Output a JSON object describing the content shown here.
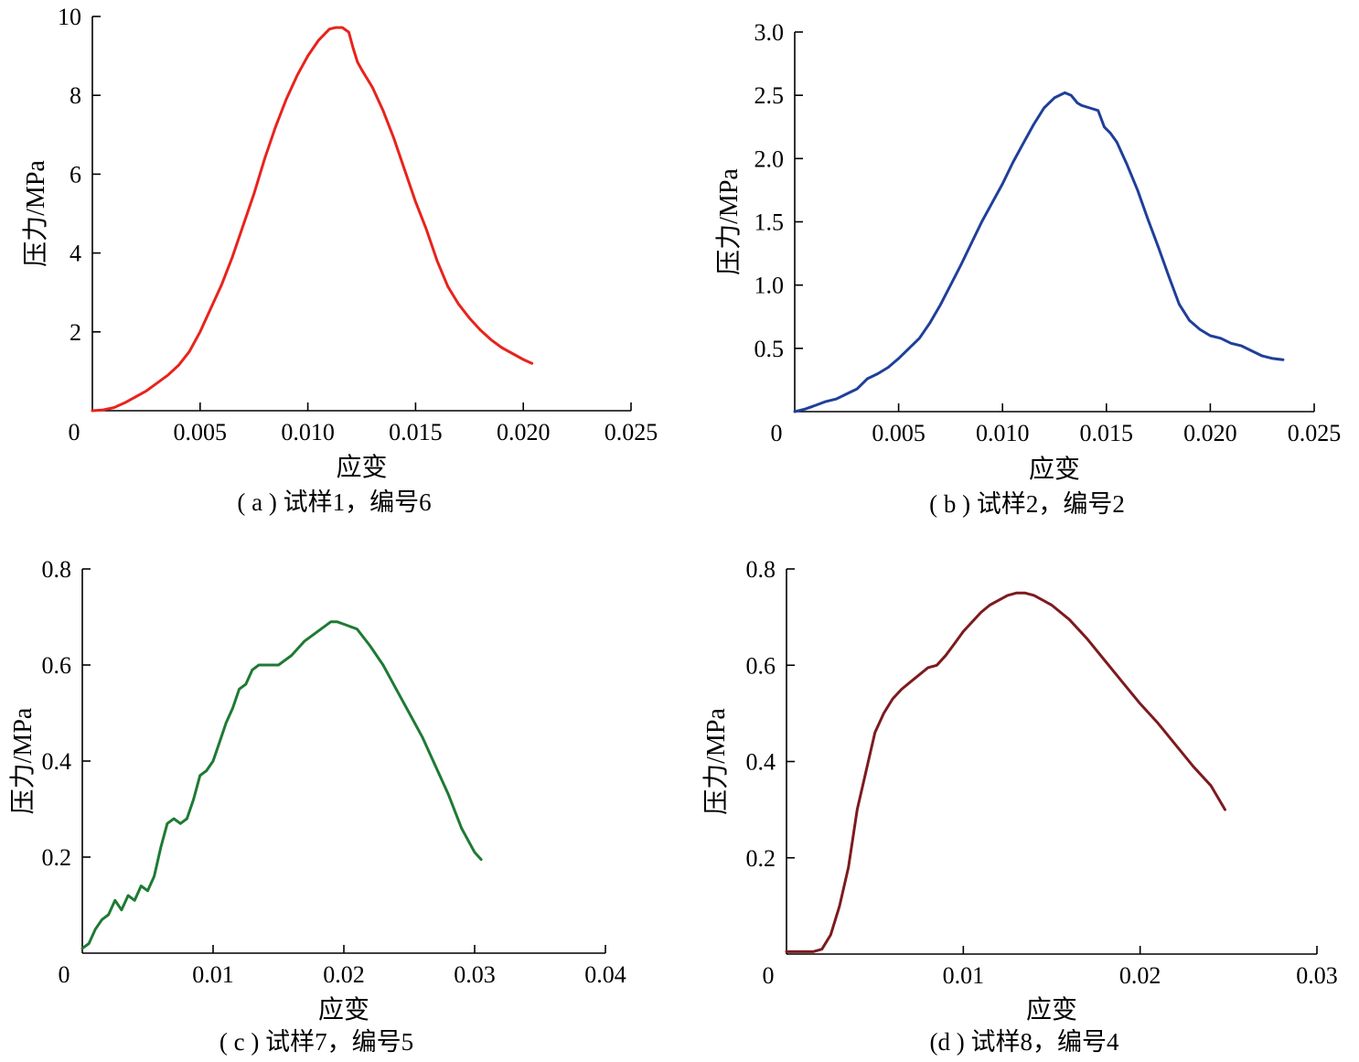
{
  "chart_data": [
    {
      "type": "line",
      "caption": "( a ) 试样1，编号6",
      "xlabel": "应变",
      "ylabel": "压力/MPa",
      "xlim": [
        0,
        0.025
      ],
      "ylim": [
        0,
        10
      ],
      "xticks": [
        0,
        0.005,
        0.01,
        0.015,
        0.02,
        0.025
      ],
      "xtick_labels": [
        "0",
        "0.005",
        "0.010",
        "0.015",
        "0.020",
        "0.025"
      ],
      "yticks": [
        2,
        4,
        6,
        8,
        10
      ],
      "ytick_labels": [
        "2",
        "4",
        "6",
        "8",
        "10"
      ],
      "zero_label": "0",
      "color": "#e8231c",
      "x": [
        0,
        0.0005,
        0.001,
        0.0015,
        0.002,
        0.0025,
        0.003,
        0.0035,
        0.004,
        0.0045,
        0.005,
        0.0055,
        0.006,
        0.0065,
        0.007,
        0.0075,
        0.008,
        0.0085,
        0.009,
        0.0095,
        0.01,
        0.0105,
        0.011,
        0.0113,
        0.0116,
        0.0119,
        0.0121,
        0.0123,
        0.0125,
        0.013,
        0.0135,
        0.014,
        0.0145,
        0.015,
        0.0155,
        0.016,
        0.0165,
        0.017,
        0.0175,
        0.018,
        0.0185,
        0.019,
        0.0195,
        0.02,
        0.0204
      ],
      "y": [
        0.0,
        0.02,
        0.08,
        0.2,
        0.35,
        0.5,
        0.7,
        0.9,
        1.15,
        1.5,
        2.0,
        2.6,
        3.2,
        3.9,
        4.7,
        5.5,
        6.4,
        7.2,
        7.9,
        8.5,
        9.0,
        9.4,
        9.68,
        9.72,
        9.72,
        9.6,
        9.2,
        8.85,
        8.65,
        8.2,
        7.6,
        6.9,
        6.1,
        5.3,
        4.6,
        3.8,
        3.15,
        2.7,
        2.35,
        2.05,
        1.8,
        1.6,
        1.45,
        1.3,
        1.2
      ]
    },
    {
      "type": "line",
      "caption": "( b ) 试样2，编号2",
      "xlabel": "应变",
      "ylabel": "压力/MPa",
      "xlim": [
        0,
        0.025
      ],
      "ylim": [
        0,
        3.0
      ],
      "xticks": [
        0,
        0.005,
        0.01,
        0.015,
        0.02,
        0.025
      ],
      "xtick_labels": [
        "0",
        "0.005",
        "0.010",
        "0.015",
        "0.020",
        "0.025"
      ],
      "yticks": [
        0.5,
        1.0,
        1.5,
        2.0,
        2.5,
        3.0
      ],
      "ytick_labels": [
        "0.5",
        "1.0",
        "1.5",
        "2.0",
        "2.5",
        "3.0"
      ],
      "zero_label": "0",
      "color": "#1f3f99",
      "x": [
        0,
        0.0005,
        0.001,
        0.0015,
        0.002,
        0.0025,
        0.003,
        0.0035,
        0.004,
        0.0045,
        0.005,
        0.0055,
        0.006,
        0.0065,
        0.007,
        0.0075,
        0.008,
        0.0085,
        0.009,
        0.0095,
        0.01,
        0.0105,
        0.011,
        0.0115,
        0.012,
        0.0125,
        0.013,
        0.0133,
        0.0136,
        0.0138,
        0.0142,
        0.0146,
        0.0149,
        0.0152,
        0.0155,
        0.016,
        0.0165,
        0.017,
        0.0175,
        0.018,
        0.0185,
        0.019,
        0.0195,
        0.02,
        0.0205,
        0.021,
        0.0215,
        0.022,
        0.0225,
        0.023,
        0.0235
      ],
      "y": [
        0.0,
        0.02,
        0.05,
        0.08,
        0.1,
        0.14,
        0.18,
        0.26,
        0.3,
        0.35,
        0.42,
        0.5,
        0.58,
        0.7,
        0.84,
        1.0,
        1.16,
        1.33,
        1.5,
        1.65,
        1.8,
        1.97,
        2.12,
        2.27,
        2.4,
        2.48,
        2.52,
        2.5,
        2.44,
        2.42,
        2.4,
        2.38,
        2.25,
        2.2,
        2.13,
        1.95,
        1.75,
        1.52,
        1.3,
        1.07,
        0.85,
        0.72,
        0.65,
        0.6,
        0.58,
        0.54,
        0.52,
        0.48,
        0.44,
        0.42,
        0.41
      ]
    },
    {
      "type": "line",
      "caption": "( c ) 试样7，编号5",
      "xlabel": "应变",
      "ylabel": "压力/MPa",
      "xlim": [
        0,
        0.04
      ],
      "ylim": [
        0,
        0.8
      ],
      "xticks": [
        0,
        0.01,
        0.02,
        0.03,
        0.04
      ],
      "xtick_labels": [
        "0",
        "0.01",
        "0.02",
        "0.03",
        "0.04"
      ],
      "yticks": [
        0.2,
        0.4,
        0.6,
        0.8
      ],
      "ytick_labels": [
        "0.2",
        "0.4",
        "0.6",
        "0.8"
      ],
      "zero_label": "0",
      "color": "#1e7a34",
      "x": [
        0,
        0.0005,
        0.001,
        0.0015,
        0.002,
        0.0025,
        0.003,
        0.0035,
        0.004,
        0.0045,
        0.005,
        0.0055,
        0.006,
        0.0065,
        0.007,
        0.0075,
        0.008,
        0.0085,
        0.009,
        0.0095,
        0.01,
        0.0105,
        0.011,
        0.0115,
        0.012,
        0.0125,
        0.013,
        0.0135,
        0.014,
        0.0145,
        0.015,
        0.016,
        0.017,
        0.018,
        0.019,
        0.0195,
        0.02,
        0.021,
        0.022,
        0.023,
        0.024,
        0.025,
        0.026,
        0.027,
        0.028,
        0.029,
        0.03,
        0.0305
      ],
      "y": [
        0.01,
        0.02,
        0.05,
        0.07,
        0.08,
        0.11,
        0.09,
        0.12,
        0.11,
        0.14,
        0.13,
        0.16,
        0.22,
        0.27,
        0.28,
        0.27,
        0.28,
        0.32,
        0.37,
        0.38,
        0.4,
        0.44,
        0.48,
        0.51,
        0.55,
        0.56,
        0.59,
        0.6,
        0.6,
        0.6,
        0.6,
        0.62,
        0.65,
        0.67,
        0.69,
        0.69,
        0.685,
        0.675,
        0.64,
        0.6,
        0.55,
        0.5,
        0.45,
        0.39,
        0.33,
        0.26,
        0.21,
        0.195
      ]
    },
    {
      "type": "line",
      "caption": "(d ) 试样8，编号4",
      "xlabel": "应变",
      "ylabel": "压力/MPa",
      "xlim": [
        0,
        0.03
      ],
      "ylim": [
        0,
        0.8
      ],
      "xticks": [
        0,
        0.01,
        0.02,
        0.03
      ],
      "xtick_labels": [
        "0",
        "0.01",
        "0.02",
        "0.03"
      ],
      "yticks": [
        0.2,
        0.4,
        0.6,
        0.8
      ],
      "ytick_labels": [
        "0.2",
        "0.4",
        "0.6",
        "0.8"
      ],
      "zero_label": "0",
      "color": "#7d1a1f",
      "x": [
        0,
        0.0005,
        0.001,
        0.0015,
        0.002,
        0.0025,
        0.003,
        0.0035,
        0.004,
        0.0045,
        0.005,
        0.0055,
        0.006,
        0.0065,
        0.007,
        0.0075,
        0.008,
        0.0085,
        0.009,
        0.0095,
        0.01,
        0.0105,
        0.011,
        0.0115,
        0.012,
        0.0125,
        0.013,
        0.0135,
        0.014,
        0.015,
        0.016,
        0.017,
        0.018,
        0.019,
        0.02,
        0.021,
        0.022,
        0.023,
        0.024,
        0.0248
      ],
      "y": [
        0.005,
        0.005,
        0.005,
        0.005,
        0.01,
        0.04,
        0.1,
        0.18,
        0.3,
        0.38,
        0.46,
        0.5,
        0.53,
        0.55,
        0.565,
        0.58,
        0.595,
        0.6,
        0.62,
        0.645,
        0.67,
        0.69,
        0.71,
        0.725,
        0.735,
        0.745,
        0.75,
        0.75,
        0.745,
        0.725,
        0.695,
        0.655,
        0.61,
        0.565,
        0.52,
        0.48,
        0.435,
        0.39,
        0.35,
        0.3
      ]
    }
  ]
}
